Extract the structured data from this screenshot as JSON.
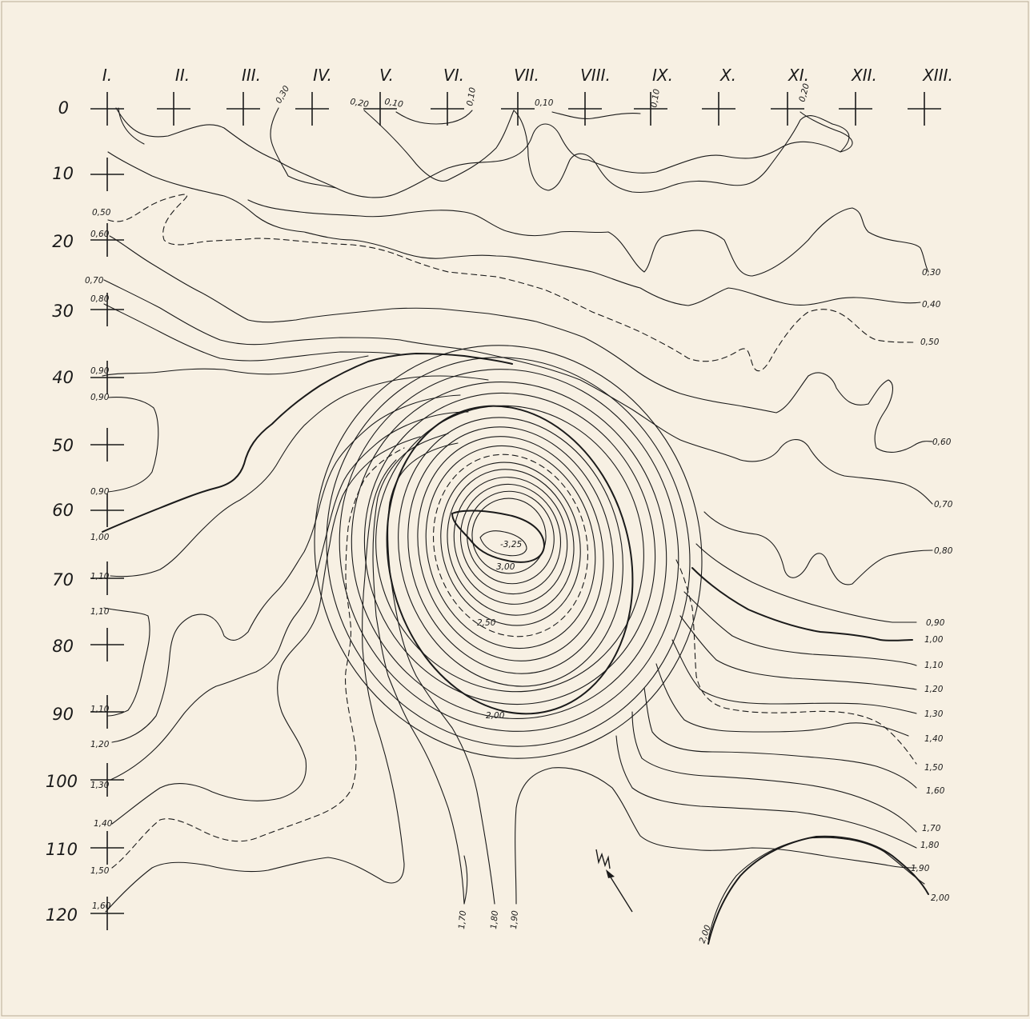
{
  "columns": [
    "I.",
    "II.",
    "III.",
    "IV.",
    "V.",
    "VI.",
    "VII.",
    "VIII.",
    "IX.",
    "X.",
    "XI.",
    "XII.",
    "XIII."
  ],
  "rows": [
    "0",
    "10",
    "20",
    "30",
    "40",
    "50",
    "60",
    "70",
    "80",
    "90",
    "100",
    "110",
    "120"
  ],
  "contour_labels": {
    "top": [
      "0,30",
      "0,20",
      "0,10",
      "0,10",
      "0,10",
      "0,10",
      "0,20"
    ],
    "left": [
      "0,50",
      "0,60",
      "0,70",
      "0,80",
      "0,90",
      "0,90",
      "0,90",
      "1,00",
      "1,10",
      "1,10",
      "1,10",
      "1,20",
      "1,30",
      "1,40",
      "1,50",
      "1,60"
    ],
    "right": [
      "0,30",
      "0,40",
      "0,50",
      "0,60",
      "0,70",
      "0,80",
      "0,90",
      "1,00",
      "1,10",
      "1,20",
      "1,30",
      "1,40",
      "1,50",
      "1,60",
      "1,70",
      "1,80",
      "1,90",
      "2,00"
    ],
    "bottom": [
      "1,70",
      "1,80",
      "1,90",
      "2,00"
    ],
    "center": [
      "-3,25",
      "3,00",
      "2,50",
      "2,00"
    ]
  },
  "north_symbol": "north-arrow-icon"
}
